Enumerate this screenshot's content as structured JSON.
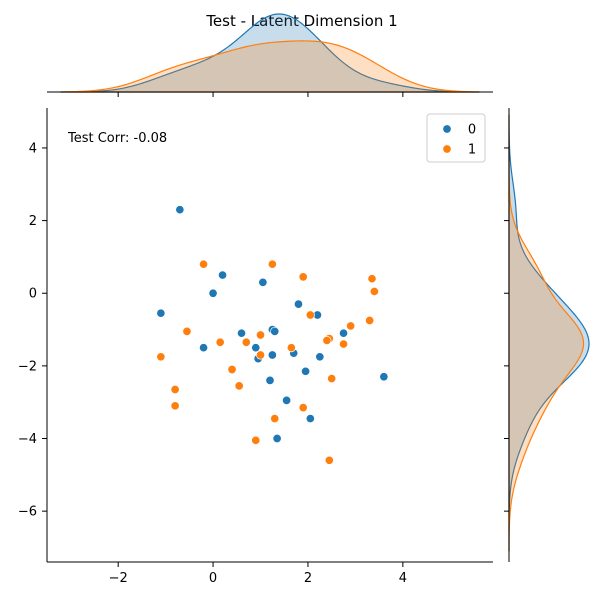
{
  "chart_data": {
    "type": "scatter",
    "title": "Test - Latent Dimension 1",
    "annotation": "Test Corr: -0.08",
    "xlabel": "",
    "ylabel": "",
    "xlim": [
      -3.5,
      5.9
    ],
    "ylim": [
      -7.4,
      5.1
    ],
    "xticks": [
      -2,
      0,
      2,
      4
    ],
    "yticks": [
      -6,
      -4,
      -2,
      0,
      2,
      4
    ],
    "grid": false,
    "legend_position": "top-right",
    "marginals": "kde",
    "series": [
      {
        "name": "0",
        "color": "#1f77b4",
        "points": [
          [
            -0.7,
            2.3
          ],
          [
            -1.1,
            -0.55
          ],
          [
            0.2,
            0.5
          ],
          [
            0.0,
            0.0
          ],
          [
            1.05,
            0.3
          ],
          [
            -0.2,
            -1.5
          ],
          [
            0.6,
            -1.1
          ],
          [
            0.9,
            -1.5
          ],
          [
            0.95,
            -1.8
          ],
          [
            1.25,
            -1.0
          ],
          [
            1.3,
            -1.05
          ],
          [
            1.25,
            -1.7
          ],
          [
            1.2,
            -2.4
          ],
          [
            1.7,
            -1.65
          ],
          [
            1.8,
            -0.3
          ],
          [
            2.2,
            -0.6
          ],
          [
            1.95,
            -2.15
          ],
          [
            2.25,
            -1.75
          ],
          [
            2.75,
            -1.1
          ],
          [
            1.55,
            -2.95
          ],
          [
            2.05,
            -3.45
          ],
          [
            1.35,
            -4.0
          ],
          [
            3.6,
            -2.3
          ]
        ]
      },
      {
        "name": "1",
        "color": "#ff7f0e",
        "points": [
          [
            -0.2,
            0.8
          ],
          [
            1.25,
            0.8
          ],
          [
            1.9,
            0.45
          ],
          [
            3.35,
            0.4
          ],
          [
            3.4,
            0.05
          ],
          [
            2.05,
            -0.6
          ],
          [
            -0.55,
            -1.05
          ],
          [
            0.15,
            -1.35
          ],
          [
            0.7,
            -1.35
          ],
          [
            1.0,
            -1.15
          ],
          [
            1.0,
            -1.7
          ],
          [
            1.65,
            -1.5
          ],
          [
            -1.1,
            -1.75
          ],
          [
            0.4,
            -2.1
          ],
          [
            0.55,
            -2.55
          ],
          [
            -0.8,
            -2.65
          ],
          [
            -0.8,
            -3.1
          ],
          [
            2.45,
            -1.25
          ],
          [
            2.4,
            -1.3
          ],
          [
            2.9,
            -0.9
          ],
          [
            3.3,
            -0.75
          ],
          [
            2.75,
            -1.4
          ],
          [
            2.5,
            -2.35
          ],
          [
            1.3,
            -3.45
          ],
          [
            1.9,
            -3.15
          ],
          [
            0.9,
            -4.05
          ],
          [
            2.45,
            -4.6
          ]
        ]
      }
    ]
  }
}
